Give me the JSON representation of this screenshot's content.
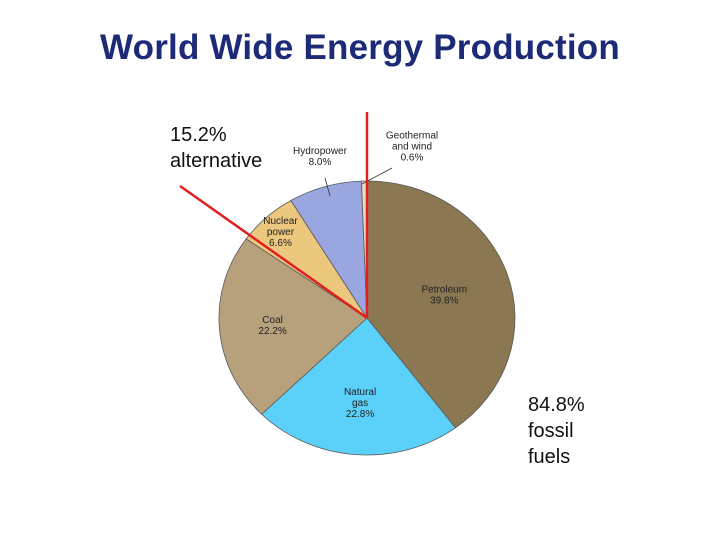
{
  "title": "World Wide Energy Production",
  "annotations": {
    "alternative": {
      "line1": "15.2%",
      "line2": "alternative"
    },
    "fossil": {
      "line1": "84.8%",
      "line2": "fossil",
      "line3": "fuels"
    }
  },
  "chart_data": {
    "type": "pie",
    "title": "World Wide Energy Production",
    "slices": [
      {
        "name": "Petroleum",
        "value": 39.8,
        "label_lines": [
          "Petroleum",
          "39.8%"
        ],
        "color": "#8b7752"
      },
      {
        "name": "Natural gas",
        "value": 22.8,
        "label_lines": [
          "Natural",
          "gas",
          "22.8%"
        ],
        "color": "#5bd0f8"
      },
      {
        "name": "Coal",
        "value": 22.2,
        "label_lines": [
          "Coal",
          "22.2%"
        ],
        "color": "#b6a17c"
      },
      {
        "name": "Nuclear power",
        "value": 6.6,
        "label_lines": [
          "Nuclear",
          "power",
          "6.6%"
        ],
        "color": "#ecc77e"
      },
      {
        "name": "Hydropower",
        "value": 8.0,
        "label_lines": [
          "Hydropower",
          "8.0%"
        ],
        "color": "#99a6e0"
      },
      {
        "name": "Geothermal and wind",
        "value": 0.6,
        "label_lines": [
          "Geothermal",
          "and wind",
          "0.6%"
        ],
        "color": "#e9dcc0"
      }
    ],
    "groups": [
      {
        "label": "15.2% alternative",
        "value": 15.2
      },
      {
        "label": "84.8% fossil fuels",
        "value": 84.8
      }
    ],
    "divider_color": "#e02020"
  }
}
